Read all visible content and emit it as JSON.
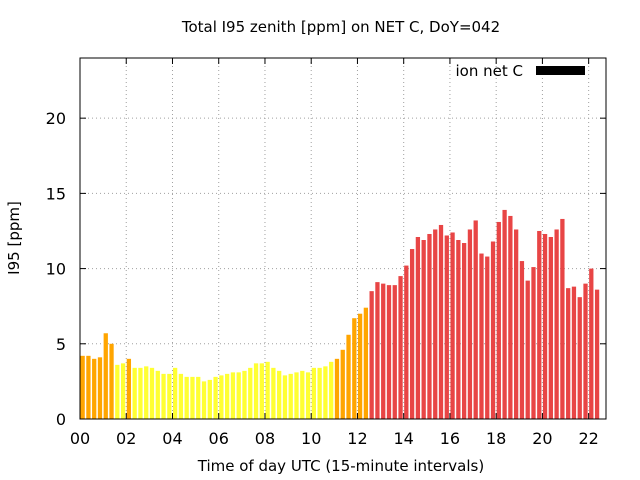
{
  "chart_data": {
    "type": "bar",
    "title": "Total I95 zenith [ppm] on NET C, DoY=042",
    "xlabel": "Time of day UTC (15-minute intervals)",
    "ylabel": "I95 [ppm]",
    "xlim": [
      0,
      22.75
    ],
    "ylim": [
      0,
      24
    ],
    "grid": true,
    "legend": {
      "label": "ion net C",
      "color": "#000000",
      "position": "top-right"
    },
    "x_ticks": [
      "00",
      "02",
      "04",
      "06",
      "08",
      "10",
      "12",
      "14",
      "16",
      "18",
      "20",
      "22"
    ],
    "x_tick_values": [
      0,
      2,
      4,
      6,
      8,
      10,
      12,
      14,
      16,
      18,
      20,
      22
    ],
    "y_ticks": [
      "0",
      "5",
      "10",
      "15",
      "20"
    ],
    "y_tick_values": [
      0,
      5,
      10,
      15,
      20
    ],
    "interval_hours": 0.25,
    "thresholds": [
      {
        "min": 0,
        "max": 4,
        "color": "#ffff33"
      },
      {
        "min": 4,
        "max": 7.5,
        "color": "#ffa500"
      },
      {
        "min": 7.5,
        "max": 100,
        "color": "#e84545"
      }
    ],
    "values": [
      4.2,
      4.2,
      4.0,
      4.1,
      5.7,
      5.0,
      3.6,
      3.7,
      4.0,
      3.4,
      3.4,
      3.5,
      3.4,
      3.2,
      3.0,
      3.0,
      3.4,
      3.0,
      2.8,
      2.8,
      2.8,
      2.5,
      2.6,
      2.8,
      2.9,
      3.0,
      3.1,
      3.1,
      3.2,
      3.4,
      3.7,
      3.7,
      3.8,
      3.4,
      3.2,
      2.9,
      3.0,
      3.1,
      3.2,
      3.1,
      3.4,
      3.4,
      3.5,
      3.8,
      4.0,
      4.6,
      5.6,
      6.7,
      7.0,
      7.4,
      8.5,
      9.1,
      9.0,
      8.9,
      8.9,
      9.5,
      10.2,
      11.3,
      12.1,
      11.9,
      12.3,
      12.6,
      12.9,
      12.2,
      12.4,
      11.9,
      11.7,
      12.6,
      13.2,
      11.0,
      10.8,
      11.8,
      13.1,
      13.9,
      13.5,
      12.6,
      10.5,
      9.2,
      10.1,
      12.5,
      12.3,
      12.1,
      12.6,
      13.3,
      8.7,
      8.8,
      8.1,
      9.0,
      10.0,
      8.6
    ]
  }
}
